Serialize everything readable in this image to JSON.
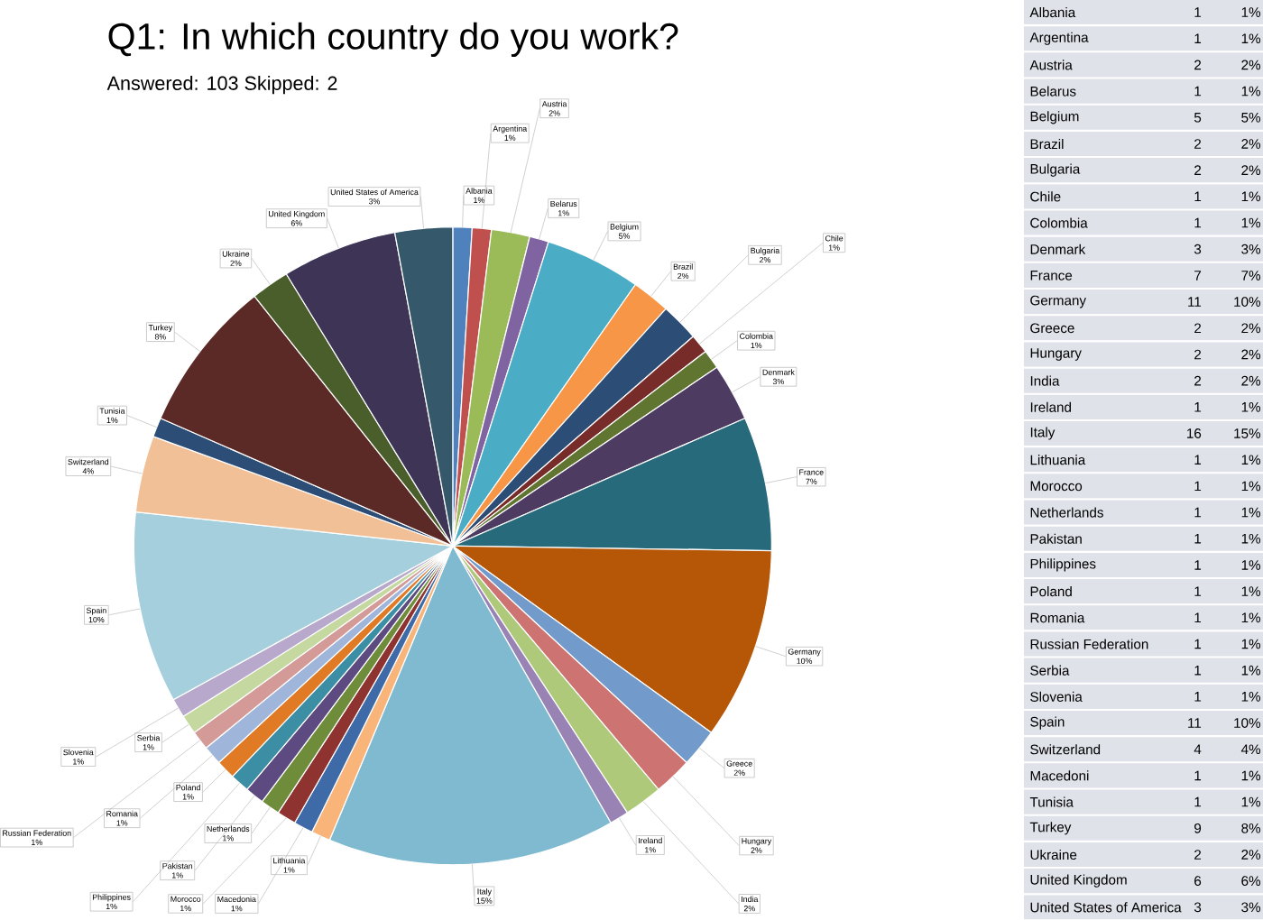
{
  "chart_data": [
    {
      "type": "pie",
      "title": "Q1: In which country do you work?",
      "subtitle": "Answered: 103    Skipped: 2",
      "categories": [
        "Albania",
        "Argentina",
        "Austria",
        "Belarus",
        "Belgium",
        "Brazil",
        "Bulgaria",
        "Chile",
        "Colombia",
        "Denmark",
        "France",
        "Germany",
        "Greece",
        "Hungary",
        "India",
        "Ireland",
        "Italy",
        "Lithuania",
        "Macedonia",
        "Morocco",
        "Netherlands",
        "Pakistan",
        "Philippines",
        "Poland",
        "Romania",
        "Russian Federation",
        "Serbia",
        "Slovenia",
        "Spain",
        "Switzerland",
        "Tunisia",
        "Turkey",
        "Ukraine",
        "United Kingdom",
        "United States of America"
      ],
      "values": [
        1,
        1,
        2,
        1,
        5,
        2,
        2,
        1,
        1,
        3,
        7,
        10,
        2,
        2,
        2,
        1,
        15,
        1,
        1,
        1,
        1,
        1,
        1,
        1,
        1,
        1,
        1,
        1,
        10,
        4,
        1,
        8,
        2,
        6,
        3
      ],
      "value_labels": [
        "1%",
        "1%",
        "2%",
        "1%",
        "5%",
        "2%",
        "2%",
        "1%",
        "1%",
        "3%",
        "7%",
        "10%",
        "2%",
        "2%",
        "2%",
        "1%",
        "15%",
        "1%",
        "1%",
        "1%",
        "1%",
        "1%",
        "1%",
        "1%",
        "1%",
        "1%",
        "1%",
        "1%",
        "10%",
        "4%",
        "1%",
        "8%",
        "2%",
        "6%",
        "3%"
      ],
      "colors": [
        "#4f81bd",
        "#c0504d",
        "#9bbb59",
        "#8064a2",
        "#4bacc6",
        "#f79646",
        "#2c4d75",
        "#772c2a",
        "#5f7530",
        "#4d3b62",
        "#276a7c",
        "#b65708",
        "#729aca",
        "#cd7371",
        "#afc97a",
        "#9983b5",
        "#7fbad1",
        "#f9b47a",
        "#3e6aa8",
        "#8e3330",
        "#6f8c3a",
        "#5c4a80",
        "#3b8ea4",
        "#e07a24",
        "#9fb5da",
        "#d49a98",
        "#c4d8a0",
        "#b7a8cc",
        "#a5cfdd",
        "#f2c097",
        "#2c4d75",
        "#5b2a26",
        "#4a5e2b",
        "#3d3456",
        "#35596a"
      ]
    },
    {
      "type": "other",
      "categories": [
        "Albania",
        "Argentina",
        "Austria",
        "Belarus",
        "Belgium",
        "Brazil",
        "Bulgaria",
        "Chile",
        "Colombia",
        "Denmark",
        "France",
        "Germany",
        "Greece",
        "Hungary",
        "India",
        "Ireland",
        "Italy",
        "Lithuania",
        "Morocco",
        "Netherlands",
        "Pakistan",
        "Philippines",
        "Poland",
        "Romania",
        "Russian Federation",
        "Serbia",
        "Slovenia",
        "Spain",
        "Switzerland",
        "Macedoni",
        "Tunisia",
        "Turkey",
        "Ukraine",
        "United Kingdom",
        "United States of America"
      ],
      "series": [
        {
          "values": [
            1,
            1,
            2,
            1,
            5,
            2,
            2,
            1,
            1,
            3,
            7,
            11,
            2,
            2,
            2,
            1,
            16,
            1,
            1,
            1,
            1,
            1,
            1,
            1,
            1,
            1,
            1,
            11,
            4,
            1,
            1,
            9,
            2,
            6,
            3
          ]
        },
        {
          "values": [
            1,
            1,
            2,
            1,
            5,
            2,
            2,
            1,
            1,
            3,
            7,
            10,
            2,
            2,
            2,
            1,
            15,
            1,
            1,
            1,
            1,
            1,
            1,
            1,
            1,
            1,
            1,
            10,
            4,
            1,
            1,
            8,
            2,
            6,
            3
          ],
          "value_labels": [
            "1%",
            "1%",
            "2%",
            "1%",
            "5%",
            "2%",
            "2%",
            "1%",
            "1%",
            "3%",
            "7%",
            "10%",
            "2%",
            "2%",
            "2%",
            "1%",
            "15%",
            "1%",
            "1%",
            "1%",
            "1%",
            "1%",
            "1%",
            "1%",
            "1%",
            "1%",
            "1%",
            "10%",
            "4%",
            "1%",
            "1%",
            "8%",
            "2%",
            "6%",
            "3%"
          ]
        }
      ],
      "data_labels": true
    }
  ]
}
